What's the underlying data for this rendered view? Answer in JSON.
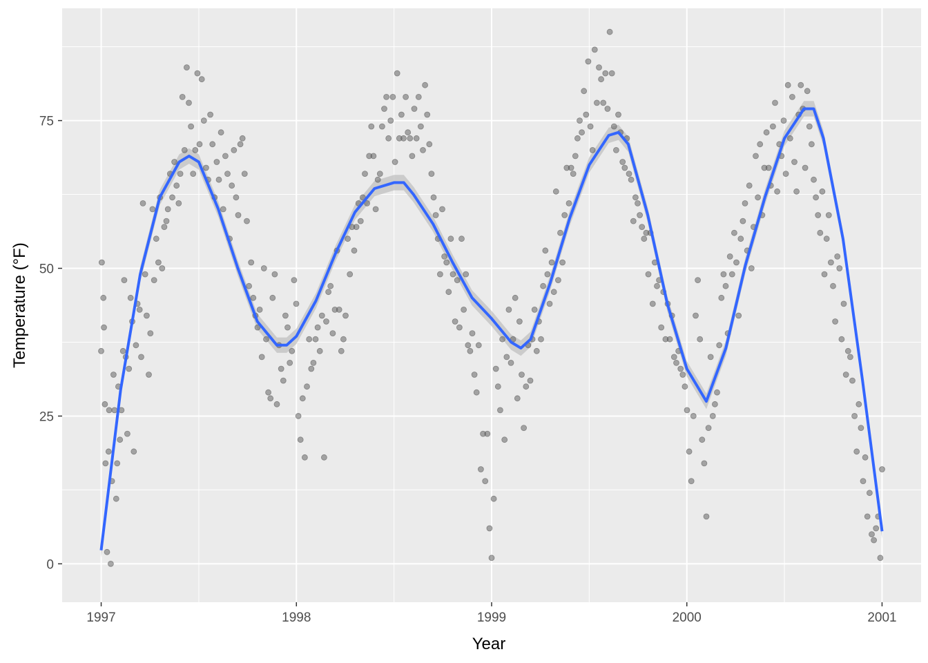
{
  "chart_data": {
    "type": "scatter",
    "title": "",
    "xlabel": "Year",
    "ylabel": "Temperature (°F)",
    "xlim": [
      1996.8,
      2001.2
    ],
    "ylim": [
      -6.5,
      94.0
    ],
    "x_ticks": [
      1997,
      1998,
      1999,
      2000,
      2001
    ],
    "y_ticks": [
      0,
      25,
      50,
      75
    ],
    "x_tick_labels": [
      "1997",
      "1998",
      "1999",
      "2000",
      "2001"
    ],
    "y_tick_labels": [
      "0",
      "25",
      "50",
      "75"
    ],
    "grid": true,
    "legend": "none",
    "point_color": "#595959",
    "smooth_color": "#3366ff",
    "band_color": "#bdbdbd",
    "panel_color": "#ebebeb",
    "series": [
      {
        "type": "scatter",
        "description_values": "daily temperatures",
        "x": [
          1997.0,
          1997.003,
          1997.011,
          1997.014,
          1997.019,
          1997.022,
          1997.03,
          1997.038,
          1997.041,
          1997.049,
          1997.055,
          1997.063,
          1997.068,
          1997.077,
          1997.082,
          1997.088,
          1997.096,
          1997.104,
          1997.112,
          1997.118,
          1997.126,
          1997.134,
          1997.142,
          1997.151,
          1997.159,
          1997.167,
          1997.178,
          1997.186,
          1997.197,
          1997.205,
          1997.214,
          1997.225,
          1997.233,
          1997.244,
          1997.252,
          1997.263,
          1997.271,
          1997.282,
          1997.293,
          1997.301,
          1997.312,
          1997.323,
          1997.334,
          1997.342,
          1997.353,
          1997.364,
          1997.375,
          1997.386,
          1997.397,
          1997.405,
          1997.416,
          1997.427,
          1997.438,
          1997.449,
          1997.46,
          1997.471,
          1997.482,
          1997.493,
          1997.504,
          1997.515,
          1997.526,
          1997.537,
          1997.548,
          1997.559,
          1997.57,
          1997.581,
          1997.592,
          1997.603,
          1997.614,
          1997.625,
          1997.636,
          1997.647,
          1997.658,
          1997.669,
          1997.68,
          1997.691,
          1997.702,
          1997.713,
          1997.724,
          1997.735,
          1997.746,
          1997.757,
          1997.768,
          1997.779,
          1997.79,
          1997.801,
          1997.812,
          1997.823,
          1997.834,
          1997.845,
          1997.856,
          1997.867,
          1997.878,
          1997.889,
          1997.9,
          1997.911,
          1997.922,
          1997.933,
          1997.944,
          1997.955,
          1997.966,
          1997.977,
          1997.988,
          1997.999,
          1998.01,
          1998.021,
          1998.032,
          1998.043,
          1998.054,
          1998.065,
          1998.076,
          1998.087,
          1998.098,
          1998.109,
          1998.12,
          1998.131,
          1998.142,
          1998.153,
          1998.164,
          1998.175,
          1998.186,
          1998.197,
          1998.208,
          1998.219,
          1998.23,
          1998.241,
          1998.252,
          1998.263,
          1998.274,
          1998.285,
          1998.296,
          1998.307,
          1998.318,
          1998.329,
          1998.34,
          1998.351,
          1998.362,
          1998.373,
          1998.384,
          1998.395,
          1998.406,
          1998.417,
          1998.428,
          1998.439,
          1998.45,
          1998.461,
          1998.472,
          1998.483,
          1998.494,
          1998.505,
          1998.516,
          1998.527,
          1998.538,
          1998.549,
          1998.56,
          1998.571,
          1998.582,
          1998.593,
          1998.604,
          1998.615,
          1998.626,
          1998.637,
          1998.648,
          1998.659,
          1998.67,
          1998.681,
          1998.692,
          1998.703,
          1998.714,
          1998.725,
          1998.736,
          1998.747,
          1998.758,
          1998.769,
          1998.78,
          1998.791,
          1998.802,
          1998.813,
          1998.824,
          1998.835,
          1998.846,
          1998.857,
          1998.868,
          1998.879,
          1998.89,
          1998.901,
          1998.912,
          1998.923,
          1998.934,
          1998.945,
          1998.956,
          1998.967,
          1998.978,
          1998.989,
          1999.0,
          1999.011,
          1999.022,
          1999.033,
          1999.044,
          1999.055,
          1999.066,
          1999.077,
          1999.088,
          1999.099,
          1999.11,
          1999.121,
          1999.132,
          1999.143,
          1999.154,
          1999.165,
          1999.176,
          1999.187,
          1999.198,
          1999.209,
          1999.22,
          1999.231,
          1999.242,
          1999.253,
          1999.264,
          1999.275,
          1999.286,
          1999.297,
          1999.308,
          1999.319,
          1999.33,
          1999.341,
          1999.352,
          1999.363,
          1999.374,
          1999.385,
          1999.396,
          1999.407,
          1999.418,
          1999.429,
          1999.44,
          1999.451,
          1999.462,
          1999.473,
          1999.484,
          1999.495,
          1999.506,
          1999.517,
          1999.528,
          1999.539,
          1999.55,
          1999.561,
          1999.572,
          1999.583,
          1999.594,
          1999.605,
          1999.616,
          1999.627,
          1999.638,
          1999.649,
          1999.66,
          1999.671,
          1999.682,
          1999.693,
          1999.704,
          1999.715,
          1999.726,
          1999.737,
          1999.748,
          1999.759,
          1999.77,
          1999.781,
          1999.792,
          1999.803,
          1999.814,
          1999.825,
          1999.836,
          1999.847,
          1999.858,
          1999.869,
          1999.88,
          1999.891,
          1999.902,
          1999.913,
          1999.924,
          1999.935,
          1999.946,
          1999.957,
          1999.968,
          1999.979,
          1999.99,
          2000.001,
          2000.012,
          2000.023,
          2000.034,
          2000.045,
          2000.056,
          2000.067,
          2000.078,
          2000.089,
          2000.1,
          2000.111,
          2000.122,
          2000.133,
          2000.144,
          2000.155,
          2000.166,
          2000.177,
          2000.188,
          2000.199,
          2000.21,
          2000.221,
          2000.232,
          2000.243,
          2000.254,
          2000.265,
          2000.276,
          2000.287,
          2000.298,
          2000.309,
          2000.32,
          2000.331,
          2000.342,
          2000.353,
          2000.364,
          2000.375,
          2000.386,
          2000.397,
          2000.408,
          2000.419,
          2000.43,
          2000.441,
          2000.452,
          2000.463,
          2000.474,
          2000.485,
          2000.496,
          2000.507,
          2000.518,
          2000.529,
          2000.54,
          2000.551,
          2000.562,
          2000.573,
          2000.584,
          2000.595,
          2000.606,
          2000.617,
          2000.628,
          2000.639,
          2000.65,
          2000.661,
          2000.672,
          2000.683,
          2000.694,
          2000.705,
          2000.716,
          2000.727,
          2000.738,
          2000.749,
          2000.76,
          2000.771,
          2000.782,
          2000.793,
          2000.804,
          2000.815,
          2000.826,
          2000.837,
          2000.848,
          2000.859,
          2000.87,
          2000.881,
          2000.892,
          2000.903,
          2000.914,
          2000.925,
          2000.936,
          2000.947,
          2000.958,
          2000.969,
          2000.98,
          2000.991,
          2001.0
        ],
        "y": [
          36,
          51,
          45,
          40,
          27,
          17,
          2,
          19,
          26,
          0,
          14,
          32,
          26,
          11,
          17,
          30,
          21,
          26,
          36,
          48,
          35,
          22,
          33,
          45,
          41,
          19,
          37,
          44,
          43,
          35,
          61,
          49,
          42,
          32,
          39,
          60,
          48,
          55,
          51,
          62,
          50,
          57,
          58,
          60,
          66,
          62,
          68,
          64,
          61,
          66,
          79,
          70,
          84,
          78,
          74,
          66,
          70,
          83,
          71,
          82,
          75,
          67,
          65,
          76,
          71,
          62,
          68,
          65,
          73,
          60,
          69,
          66,
          55,
          64,
          70,
          62,
          59,
          71,
          72,
          66,
          58,
          47,
          51,
          45,
          42,
          40,
          43,
          35,
          50,
          38,
          29,
          28,
          45,
          49,
          27,
          37,
          33,
          31,
          42,
          40,
          34,
          36,
          48,
          44,
          25,
          21,
          28,
          18,
          30,
          38,
          33,
          34,
          38,
          40,
          36,
          42,
          18,
          41,
          46,
          47,
          39,
          43,
          53,
          43,
          36,
          38,
          42,
          55,
          49,
          57,
          53,
          57,
          61,
          58,
          62,
          66,
          61,
          69,
          74,
          69,
          60,
          65,
          66,
          74,
          77,
          79,
          72,
          75,
          79,
          68,
          83,
          72,
          76,
          72,
          79,
          73,
          72,
          69,
          77,
          72,
          79,
          74,
          70,
          81,
          76,
          71,
          66,
          62,
          59,
          55,
          49,
          60,
          52,
          51,
          46,
          55,
          49,
          41,
          48,
          40,
          55,
          43,
          49,
          37,
          36,
          39,
          32,
          29,
          37,
          16,
          22,
          14,
          22,
          6,
          1,
          11,
          33,
          30,
          26,
          38,
          21,
          35,
          43,
          34,
          38,
          45,
          28,
          41,
          32,
          23,
          30,
          37,
          31,
          38,
          43,
          36,
          41,
          38,
          47,
          53,
          49,
          44,
          51,
          46,
          63,
          48,
          56,
          51,
          59,
          67,
          61,
          67,
          66,
          69,
          72,
          75,
          73,
          80,
          76,
          85,
          74,
          70,
          87,
          78,
          84,
          82,
          78,
          83,
          77,
          90,
          83,
          74,
          70,
          76,
          73,
          68,
          67,
          72,
          66,
          65,
          58,
          62,
          61,
          59,
          57,
          55,
          56,
          49,
          56,
          44,
          51,
          47,
          48,
          40,
          46,
          38,
          44,
          38,
          42,
          35,
          34,
          36,
          33,
          32,
          30,
          26,
          19,
          14,
          25,
          42,
          48,
          38,
          21,
          17,
          8,
          23,
          35,
          25,
          27,
          29,
          37,
          45,
          49,
          47,
          39,
          52,
          49,
          56,
          51,
          42,
          55,
          58,
          61,
          53,
          64,
          50,
          57,
          69,
          62,
          71,
          59,
          67,
          73,
          67,
          64,
          74,
          78,
          63,
          71,
          69,
          75,
          66,
          81,
          72,
          79,
          68,
          63,
          76,
          81,
          77,
          67,
          80,
          74,
          71,
          65,
          62,
          59,
          56,
          63,
          49,
          55,
          59,
          51,
          47,
          41,
          52,
          50,
          38,
          44,
          32,
          36,
          35,
          31,
          25,
          19,
          27,
          23,
          14,
          18,
          8,
          12,
          5,
          4,
          6,
          8,
          1,
          16
        ],
        "note_approx": true
      },
      {
        "type": "smooth",
        "x": [
          1997.0,
          1997.1,
          1997.2,
          1997.3,
          1997.4,
          1997.45,
          1997.5,
          1997.6,
          1997.7,
          1997.8,
          1997.9,
          1997.95,
          1998.0,
          1998.1,
          1998.2,
          1998.3,
          1998.4,
          1998.5,
          1998.55,
          1998.6,
          1998.7,
          1998.8,
          1998.9,
          1999.0,
          1999.1,
          1999.15,
          1999.2,
          1999.3,
          1999.4,
          1999.5,
          1999.6,
          1999.65,
          1999.7,
          1999.8,
          1999.9,
          2000.0,
          2000.1,
          2000.2,
          2000.3,
          2000.4,
          2000.5,
          2000.6,
          2000.65,
          2000.7,
          2000.8,
          2000.9,
          2001.0
        ],
        "y": [
          2.3,
          29.5,
          49.0,
          62.0,
          68.0,
          69.0,
          68.0,
          60.0,
          50.0,
          41.0,
          37.0,
          37.0,
          38.5,
          44.5,
          52.5,
          59.5,
          63.5,
          64.5,
          64.5,
          62.5,
          57.5,
          51.0,
          45.0,
          41.5,
          37.5,
          36.5,
          38.0,
          47.5,
          58.5,
          67.5,
          72.5,
          73.0,
          71.0,
          59.0,
          44.0,
          33.0,
          27.5,
          36.5,
          50.5,
          62.0,
          72.0,
          77.0,
          77.0,
          72.0,
          55.0,
          31.0,
          5.5
        ]
      }
    ]
  }
}
